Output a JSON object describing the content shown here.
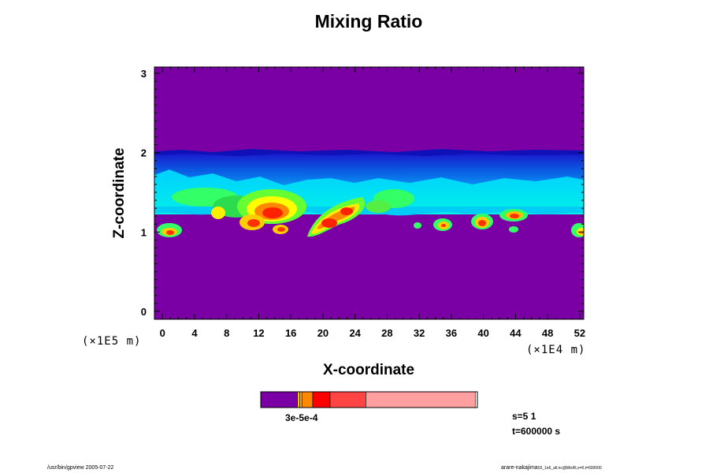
{
  "chart_data": {
    "type": "heatmap",
    "title": "Mixing Ratio",
    "xlabel": "X-coordinate",
    "ylabel": "Z-coordinate",
    "x_multiplier": "(×1E4 m)",
    "y_multiplier": "(×1E5 m)",
    "xlim": [
      -1,
      52.5
    ],
    "ylim": [
      -0.1,
      3.08
    ],
    "x_ticks": [
      0,
      4,
      8,
      12,
      16,
      20,
      24,
      28,
      32,
      36,
      40,
      44,
      48,
      52
    ],
    "y_ticks": [
      0,
      1,
      2,
      3
    ],
    "background_color": "#7a00a6",
    "cloud_layer": {
      "z_bottom": 1.22,
      "z_top": 2.0
    },
    "colorbar": {
      "label": "3e-5e-4",
      "segments": [
        {
          "color": "#7a00a6",
          "fraction": 0.17
        },
        {
          "color": "#ffcc00",
          "fraction": 0.01
        },
        {
          "color": "#ffaa00",
          "fraction": 0.01
        },
        {
          "color": "#ff8800",
          "fraction": 0.05
        },
        {
          "color": "#ff0000",
          "fraction": 0.08
        },
        {
          "color": "#ff4444",
          "fraction": 0.165
        },
        {
          "color": "#ff9f9f",
          "fraction": 0.505
        }
      ]
    }
  },
  "annotations": {
    "stat_s": "s=5 1",
    "stat_t": "t=600000 s"
  },
  "footer": {
    "left": "/usr/bin/gpview 2005-07-22",
    "right_main": "arare-nakajima",
    "right_sub": "03_1e6_all.nc@MixRt,x=0,t=600000"
  }
}
